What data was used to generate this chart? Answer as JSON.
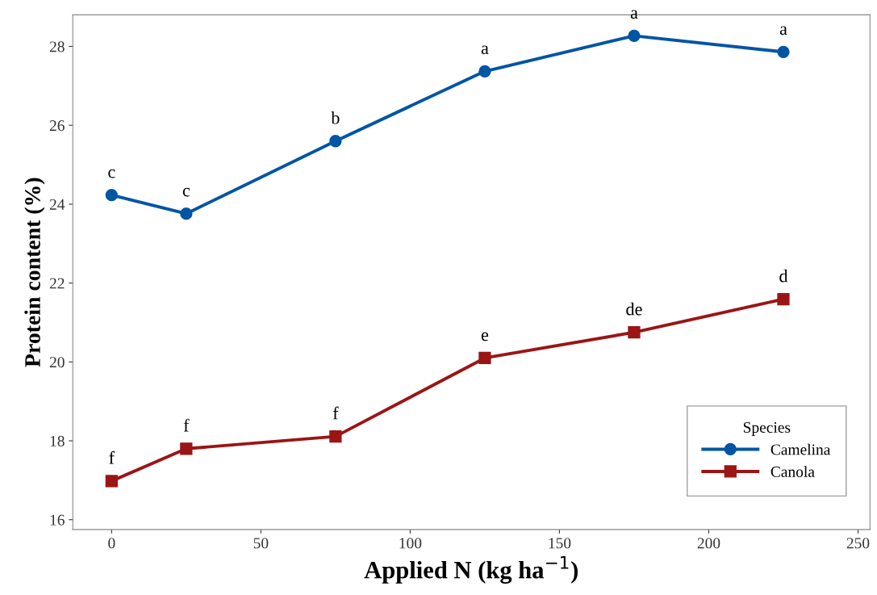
{
  "chart_data": {
    "type": "line",
    "xlabel": "Applied N (kg ha$^{−1}$)",
    "ylabel": "Protein content (%)",
    "legend_title": "Species",
    "legend": "bottom right",
    "grid": false,
    "series": [
      {
        "name": "Camelina",
        "color": "#0055a4",
        "marker": "circle",
        "x": [
          0,
          25,
          75,
          125,
          175,
          225
        ],
        "values": [
          24.23,
          23.76,
          25.6,
          27.37,
          28.27,
          27.86
        ]
      },
      {
        "name": "Canola",
        "color": "#9b1515",
        "marker": "square",
        "x": [
          0,
          25,
          75,
          125,
          175,
          225
        ],
        "values": [
          16.98,
          17.8,
          18.11,
          20.1,
          20.75,
          21.59
        ]
      }
    ],
    "xlim": [
      -13,
      254
    ],
    "ylim": [
      15.75,
      28.8
    ],
    "xticks": [
      0,
      50,
      100,
      150,
      200,
      250
    ],
    "yticks": [
      16,
      18,
      20,
      22,
      24,
      26,
      28
    ],
    "annotations": [
      {
        "text": "c",
        "x": 0,
        "y": 24.23
      },
      {
        "text": "c",
        "x": 25,
        "y": 23.76
      },
      {
        "text": "b",
        "x": 75,
        "y": 25.6
      },
      {
        "text": "a",
        "x": 125,
        "y": 27.37
      },
      {
        "text": "a",
        "x": 175,
        "y": 28.27
      },
      {
        "text": "a",
        "x": 225,
        "y": 27.86
      },
      {
        "text": "f",
        "x": 0,
        "y": 16.98
      },
      {
        "text": "f",
        "x": 25,
        "y": 17.8
      },
      {
        "text": "f",
        "x": 75,
        "y": 18.11
      },
      {
        "text": "e",
        "x": 125,
        "y": 20.1
      },
      {
        "text": "de",
        "x": 175,
        "y": 20.75
      },
      {
        "text": "d",
        "x": 225,
        "y": 21.59
      }
    ]
  }
}
